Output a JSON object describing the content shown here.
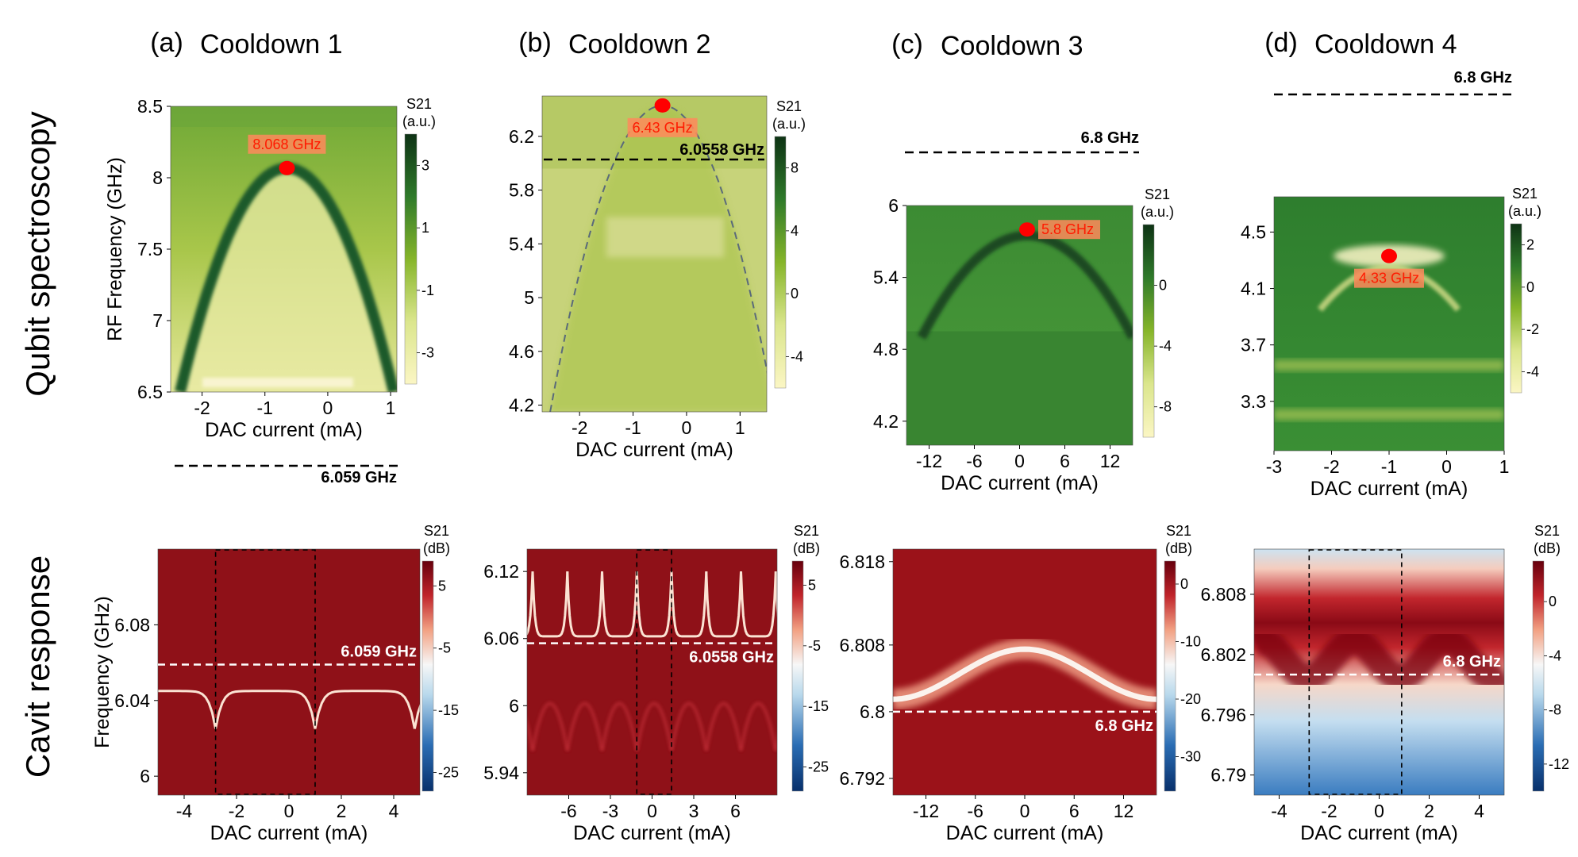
{
  "figure": {
    "row_labels": [
      "Qubit spectroscopy",
      "Cavit response"
    ],
    "colorbar_header": [
      "S21",
      "(a.u.)"
    ],
    "colorbar_header_db": [
      "S21",
      "(dB)"
    ],
    "colors": {
      "spec_low": "#fbf6c4",
      "spec_mid": "#86b52a",
      "spec_high": "#0e3315",
      "cav_low": "#08306b",
      "cav_mid": "#f7f7f7",
      "cav_high": "#67000d",
      "marker": "#ff0000",
      "annotation_bg": "#ff8a5c",
      "annotation_text": "#ff1a00"
    }
  },
  "chart_data": [
    {
      "id": "a-spec",
      "type": "heatmap",
      "panel_label": "(a)",
      "title": "Cooldown 1",
      "xlabel": "DAC current (mA)",
      "ylabel": "RF Frequency (GHz)",
      "xlim": [
        -2.5,
        1.1
      ],
      "ylim": [
        6.5,
        8.5
      ],
      "xticks": [
        -2,
        -1,
        0,
        1
      ],
      "xticklabels": [
        "-2",
        "-1",
        "0",
        "1"
      ],
      "yticks": [
        6.5,
        7,
        7.5,
        8,
        8.5
      ],
      "yticklabels": [
        "6.5",
        "7",
        "7.5",
        "8",
        "8.5"
      ],
      "colorbar": {
        "label": "S21 (a.u.)",
        "range": [
          -4,
          4
        ],
        "ticks": [
          3,
          1,
          -1,
          -3
        ],
        "ticklabels": [
          "3",
          "1",
          "-1",
          "-3"
        ]
      },
      "peak": {
        "x": -0.65,
        "y": 8.068,
        "label": "8.068 GHz"
      },
      "dispersion_half_width": 1.7,
      "reference_line": {
        "value": 6.059,
        "label": "6.059 GHz"
      }
    },
    {
      "id": "b-spec",
      "type": "heatmap",
      "panel_label": "(b)",
      "title": "Cooldown 2",
      "xlabel": "DAC current (mA)",
      "ylabel": "",
      "xlim": [
        -2.7,
        1.5
      ],
      "ylim": [
        4.15,
        6.5
      ],
      "xticks": [
        -2,
        -1,
        0,
        1
      ],
      "xticklabels": [
        "-2",
        "-1",
        "0",
        "1"
      ],
      "yticks": [
        4.2,
        4.6,
        5,
        5.4,
        5.8,
        6.2
      ],
      "yticklabels": [
        "4.2",
        "4.6",
        "5",
        "5.4",
        "5.8",
        "6.2"
      ],
      "colorbar": {
        "label": "S21 (a.u.)",
        "range": [
          -6,
          10
        ],
        "ticks": [
          8,
          4,
          0,
          -4
        ],
        "ticklabels": [
          "8",
          "4",
          "0",
          "-4"
        ]
      },
      "peak": {
        "x": -0.45,
        "y": 6.43,
        "label": "6.43 GHz"
      },
      "dispersion_half_width": 2.1,
      "reference_line": {
        "value": 6.0558,
        "label": "6.0558 GHz"
      }
    },
    {
      "id": "c-spec",
      "type": "heatmap",
      "panel_label": "(c)",
      "title": "Cooldown 3",
      "xlabel": "DAC current (mA)",
      "ylabel": "",
      "xlim": [
        -15,
        15
      ],
      "ylim": [
        4.0,
        6.0
      ],
      "xticks": [
        -12,
        -6,
        0,
        6,
        12
      ],
      "xticklabels": [
        "-12",
        "-6",
        "0",
        "6",
        "12"
      ],
      "yticks": [
        4.2,
        4.8,
        5.4,
        6
      ],
      "yticklabels": [
        "4.2",
        "4.8",
        "5.4",
        "6"
      ],
      "colorbar": {
        "label": "S21 (a.u.)",
        "range": [
          -10,
          4
        ],
        "ticks": [
          0,
          -4,
          -8
        ],
        "ticklabels": [
          "0",
          "-4",
          "-8"
        ]
      },
      "peak": {
        "x": 1,
        "y": 5.8,
        "label": "5.8 GHz"
      },
      "dispersion_half_width": 14,
      "reference_line": {
        "value": 6.8,
        "label": "6.8 GHz"
      }
    },
    {
      "id": "d-spec",
      "type": "heatmap",
      "panel_label": "(d)",
      "title": "Cooldown 4",
      "xlabel": "DAC current (mA)",
      "ylabel": "",
      "xlim": [
        -3,
        1
      ],
      "ylim": [
        2.95,
        4.75
      ],
      "xticks": [
        -3,
        -2,
        -1,
        0,
        1
      ],
      "xticklabels": [
        "-3",
        "-2",
        "-1",
        "0",
        "1"
      ],
      "yticks": [
        3.3,
        3.7,
        4.1,
        4.5
      ],
      "yticklabels": [
        "3.3",
        "3.7",
        "4.1",
        "4.5"
      ],
      "colorbar": {
        "label": "S21 (a.u.)",
        "range": [
          -5,
          3
        ],
        "ticks": [
          2,
          0,
          -2,
          -4
        ],
        "ticklabels": [
          "2",
          "0",
          "-2",
          "-4"
        ]
      },
      "peak": {
        "x": -1,
        "y": 4.33,
        "label": "4.33 GHz"
      },
      "reference_line": {
        "value": 6.8,
        "label": "6.8 GHz"
      }
    },
    {
      "id": "a-cav",
      "type": "heatmap",
      "xlabel": "DAC current (mA)",
      "ylabel": "Frequency (GHz)",
      "xlim": [
        -5,
        5
      ],
      "ylim": [
        5.99,
        6.12
      ],
      "xticks": [
        -4,
        -2,
        0,
        2,
        4
      ],
      "xticklabels": [
        "-4",
        "-2",
        "0",
        "2",
        "4"
      ],
      "yticks": [
        6,
        6.04,
        6.08
      ],
      "yticklabels": [
        "6",
        "6.04",
        "6.08"
      ],
      "colorbar": {
        "label": "S21 (dB)",
        "range": [
          -28,
          9
        ],
        "ticks": [
          5,
          -5,
          -15,
          -25
        ],
        "ticklabels": [
          "5",
          "-5",
          "-15",
          "-25"
        ]
      },
      "period_window": [
        -2.8,
        1
      ],
      "reference_line": {
        "value": 6.059,
        "label": "6.059 GHz"
      }
    },
    {
      "id": "b-cav",
      "type": "heatmap",
      "xlabel": "DAC current (mA)",
      "ylabel": "",
      "xlim": [
        -9,
        9
      ],
      "ylim": [
        5.92,
        6.14
      ],
      "xticks": [
        -6,
        -3,
        0,
        3,
        6
      ],
      "xticklabels": [
        "-6",
        "-3",
        "0",
        "3",
        "6"
      ],
      "yticks": [
        5.94,
        6,
        6.06,
        6.12
      ],
      "yticklabels": [
        "5.94",
        "6",
        "6.06",
        "6.12"
      ],
      "colorbar": {
        "label": "S21 (dB)",
        "range": [
          -29,
          9
        ],
        "ticks": [
          5,
          -5,
          -15,
          -25
        ],
        "ticklabels": [
          "5",
          "-5",
          "-15",
          "-25"
        ]
      },
      "period_window": [
        -1.1,
        1.4
      ],
      "reference_line": {
        "value": 6.0558,
        "label": "6.0558 GHz"
      }
    },
    {
      "id": "c-cav",
      "type": "heatmap",
      "xlabel": "DAC current (mA)",
      "ylabel": "",
      "xlim": [
        -16,
        16
      ],
      "ylim": [
        6.79,
        6.8195
      ],
      "xticks": [
        -12,
        -6,
        0,
        6,
        12
      ],
      "xticklabels": [
        "-12",
        "-6",
        "0",
        "6",
        "12"
      ],
      "yticks": [
        6.792,
        6.8,
        6.808,
        6.818
      ],
      "yticklabels": [
        "6.792",
        "6.8",
        "6.808",
        "6.818"
      ],
      "colorbar": {
        "label": "S21 (dB)",
        "range": [
          -36,
          4
        ],
        "ticks": [
          0,
          -10,
          -20,
          -30
        ],
        "ticklabels": [
          "0",
          "-10",
          "-20",
          "-30"
        ]
      },
      "reference_line": {
        "value": 6.8,
        "label": "6.8 GHz"
      }
    },
    {
      "id": "d-cav",
      "type": "heatmap",
      "xlabel": "DAC current (mA)",
      "ylabel": "",
      "xlim": [
        -5,
        5
      ],
      "ylim": [
        6.788,
        6.8125
      ],
      "xticks": [
        -4,
        -2,
        0,
        2,
        4
      ],
      "xticklabels": [
        "-4",
        "-2",
        "0",
        "2",
        "4"
      ],
      "yticks": [
        6.79,
        6.796,
        6.802,
        6.808
      ],
      "yticklabels": [
        "6.79",
        "6.796",
        "6.802",
        "6.808"
      ],
      "colorbar": {
        "label": "S21 (dB)",
        "range": [
          -14,
          3
        ],
        "ticks": [
          0,
          -4,
          -8,
          -12
        ],
        "ticklabels": [
          "0",
          "-4",
          "-8",
          "-12"
        ]
      },
      "period_window": [
        -2.8,
        0.9
      ],
      "reference_line": {
        "value": 6.8,
        "label": "6.8 GHz"
      }
    }
  ]
}
